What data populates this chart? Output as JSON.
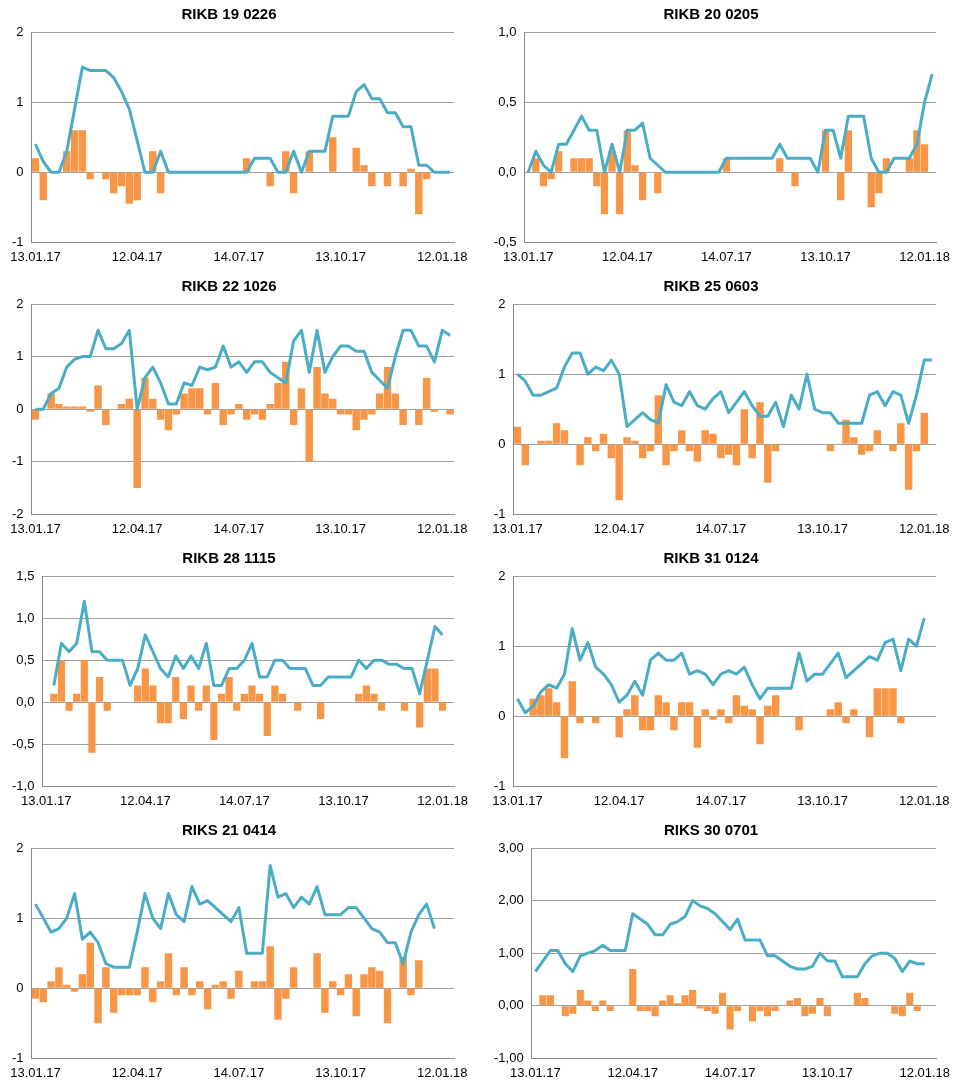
{
  "chart_data": [
    {
      "type": "bar",
      "title": "RIKB 19 0226",
      "grid": "y",
      "ylim": [
        -1,
        2
      ],
      "yticks": [
        -1,
        0,
        1,
        2
      ],
      "categories": [
        "13.01.17",
        null,
        null,
        null,
        null,
        null,
        null,
        null,
        null,
        null,
        null,
        null,
        null,
        "12.04.17",
        null,
        null,
        null,
        null,
        null,
        null,
        null,
        null,
        null,
        null,
        null,
        null,
        "14.07.17",
        null,
        null,
        null,
        null,
        null,
        null,
        null,
        null,
        null,
        null,
        null,
        null,
        "13.10.17",
        null,
        null,
        null,
        null,
        null,
        null,
        null,
        null,
        null,
        null,
        null,
        null,
        "12.01.18",
        null
      ],
      "series": [
        {
          "color": "#f79646",
          "values": [
            0.2,
            -0.4,
            null,
            null,
            0.3,
            0.6,
            0.6,
            -0.1,
            null,
            -0.1,
            -0.3,
            -0.2,
            -0.45,
            -0.4,
            null,
            0.3,
            -0.3,
            null,
            null,
            null,
            null,
            null,
            null,
            null,
            null,
            null,
            null,
            0.2,
            null,
            null,
            -0.2,
            null,
            0.3,
            -0.3,
            null,
            0.3,
            null,
            null,
            0.5,
            null,
            null,
            0.35,
            0.1,
            -0.2,
            null,
            -0.2,
            null,
            -0.2,
            0.05,
            -0.6,
            -0.1,
            null,
            null,
            null
          ]
        },
        {
          "type": "line",
          "color": "#4bacc6",
          "values": [
            0.4,
            0.15,
            0,
            0,
            0.3,
            0.9,
            1.5,
            1.45,
            1.45,
            1.45,
            1.35,
            1.15,
            0.9,
            0.45,
            0,
            0,
            0.3,
            0,
            0,
            0,
            0,
            0,
            0,
            0,
            0,
            0,
            0,
            0,
            0.2,
            0.2,
            0.2,
            0,
            0,
            0.3,
            0,
            0.3,
            0.3,
            0.3,
            0.8,
            0.8,
            0.8,
            1.15,
            1.25,
            1.05,
            1.05,
            0.85,
            0.85,
            0.65,
            0.65,
            0.1,
            0.1,
            0,
            0,
            0
          ]
        }
      ]
    },
    {
      "type": "bar",
      "title": "RIKB 20 0205",
      "grid": "y",
      "ylim": [
        -0.5,
        1
      ],
      "yticks": [
        {
          "value": -0.5,
          "label": "-0,5"
        },
        {
          "value": 0,
          "label": "0,0"
        },
        {
          "value": 0.5,
          "label": "0,5"
        },
        {
          "value": 1,
          "label": "1,0"
        }
      ],
      "categories": [
        "13.01.17",
        null,
        null,
        null,
        null,
        null,
        null,
        null,
        null,
        null,
        null,
        null,
        null,
        "12.04.17",
        null,
        null,
        null,
        null,
        null,
        null,
        null,
        null,
        null,
        null,
        null,
        null,
        "14.07.17",
        null,
        null,
        null,
        null,
        null,
        null,
        null,
        null,
        null,
        null,
        null,
        null,
        "13.10.17",
        null,
        null,
        null,
        null,
        null,
        null,
        null,
        null,
        null,
        null,
        null,
        null,
        "12.01.18",
        null
      ],
      "series": [
        {
          "color": "#f79646",
          "values": [
            null,
            0.1,
            -0.1,
            -0.05,
            0.15,
            null,
            0.1,
            0.1,
            0.1,
            -0.1,
            -0.3,
            0.15,
            -0.3,
            0.3,
            0.05,
            -0.2,
            null,
            -0.15,
            null,
            null,
            null,
            null,
            null,
            null,
            null,
            null,
            0.1,
            null,
            null,
            null,
            null,
            null,
            null,
            0.1,
            null,
            -0.1,
            null,
            null,
            null,
            0.3,
            0,
            -0.2,
            0.3,
            null,
            null,
            -0.25,
            -0.15,
            0.1,
            null,
            null,
            0.1,
            0.3,
            0.2,
            null
          ]
        },
        {
          "type": "line",
          "color": "#4bacc6",
          "values": [
            0,
            0.15,
            0.05,
            0,
            0.2,
            0.2,
            0.3,
            0.4,
            0.3,
            0.3,
            0,
            0.2,
            0,
            0.3,
            0.3,
            0.35,
            0.1,
            0.05,
            0,
            0,
            0,
            0,
            0,
            0,
            0,
            0,
            0.1,
            0.1,
            0.1,
            0.1,
            0.1,
            0.1,
            0.1,
            0.2,
            0.1,
            0.1,
            0.1,
            0.1,
            0,
            0.3,
            0.3,
            0.1,
            0.4,
            0.4,
            0.4,
            0.1,
            0,
            0,
            0.1,
            0.1,
            0.1,
            0.2,
            0.5,
            0.7
          ]
        }
      ]
    },
    {
      "type": "bar",
      "title": "RIKB 22 1026",
      "grid": "y",
      "ylim": [
        -2,
        2
      ],
      "yticks": [
        -2,
        -1,
        0,
        1,
        2
      ],
      "categories": [
        "13.01.17",
        null,
        null,
        null,
        null,
        null,
        null,
        null,
        null,
        null,
        null,
        null,
        null,
        "12.04.17",
        null,
        null,
        null,
        null,
        null,
        null,
        null,
        null,
        null,
        null,
        null,
        null,
        "14.07.17",
        null,
        null,
        null,
        null,
        null,
        null,
        null,
        null,
        null,
        null,
        null,
        null,
        "13.10.17",
        null,
        null,
        null,
        null,
        null,
        null,
        null,
        null,
        null,
        null,
        null,
        null,
        "12.01.18",
        null
      ],
      "series": [
        {
          "color": "#f79646",
          "values": [
            -0.2,
            null,
            0.3,
            0.1,
            0.05,
            0.05,
            0.05,
            -0.05,
            0.45,
            -0.3,
            null,
            0.1,
            0.2,
            -1.5,
            0.6,
            0.2,
            -0.2,
            -0.4,
            -0.1,
            0.3,
            0.4,
            0.4,
            -0.1,
            0.5,
            -0.3,
            -0.1,
            0.1,
            -0.2,
            -0.1,
            -0.2,
            0.1,
            0.5,
            0.9,
            -0.3,
            0.4,
            -1,
            0.8,
            0.3,
            0.2,
            -0.1,
            -0.1,
            -0.4,
            -0.2,
            -0.1,
            0.3,
            0.8,
            0.3,
            -0.3,
            null,
            -0.3,
            0.6,
            -0.05,
            null,
            -0.1
          ]
        },
        {
          "type": "line",
          "color": "#4bacc6",
          "values": [
            0,
            0,
            0.3,
            0.4,
            0.8,
            0.95,
            1,
            1,
            1.5,
            1.15,
            1.15,
            1.25,
            1.5,
            0,
            0.6,
            0.8,
            0.5,
            0.1,
            0.1,
            0.5,
            0.45,
            0.8,
            0.75,
            0.8,
            1.2,
            0.8,
            0.9,
            0.7,
            0.9,
            0.9,
            0.7,
            0.6,
            0.5,
            1.3,
            1.5,
            0.7,
            1.5,
            0.7,
            1,
            1.2,
            1.2,
            1.1,
            1.1,
            0.7,
            0.55,
            0.4,
            1,
            1.5,
            1.5,
            1.2,
            1.2,
            0.9,
            1.5,
            1.4
          ]
        }
      ]
    },
    {
      "type": "bar",
      "title": "RIKB 25 0603",
      "grid": "y",
      "ylim": [
        -1,
        2
      ],
      "yticks": [
        -1,
        0,
        1,
        2
      ],
      "categories": [
        "13.01.17",
        null,
        null,
        null,
        null,
        null,
        null,
        null,
        null,
        null,
        null,
        null,
        null,
        "12.04.17",
        null,
        null,
        null,
        null,
        null,
        null,
        null,
        null,
        null,
        null,
        null,
        null,
        "14.07.17",
        null,
        null,
        null,
        null,
        null,
        null,
        null,
        null,
        null,
        null,
        null,
        null,
        "13.10.17",
        null,
        null,
        null,
        null,
        null,
        null,
        null,
        null,
        null,
        null,
        null,
        null,
        "12.01.18",
        null
      ],
      "series": [
        {
          "color": "#f79646",
          "values": [
            0.25,
            -0.3,
            null,
            0.05,
            0.05,
            0.3,
            0.2,
            null,
            -0.3,
            0.1,
            -0.1,
            0.15,
            -0.2,
            -0.8,
            0.1,
            0.05,
            -0.2,
            -0.1,
            0.7,
            -0.3,
            -0.1,
            0.2,
            -0.1,
            -0.25,
            0.2,
            0.15,
            -0.2,
            -0.15,
            -0.3,
            0.5,
            -0.2,
            0.6,
            -0.55,
            -0.1,
            null,
            null,
            null,
            null,
            null,
            null,
            -0.1,
            null,
            0.35,
            0.1,
            -0.15,
            -0.1,
            0.2,
            null,
            -0.1,
            0.3,
            -0.65,
            -0.1,
            0.45,
            null
          ]
        },
        {
          "type": "line",
          "color": "#4bacc6",
          "values": [
            1,
            0.9,
            0.7,
            0.7,
            0.75,
            0.8,
            1.1,
            1.3,
            1.3,
            1,
            1.1,
            1.05,
            1.2,
            1,
            0.25,
            0.35,
            0.45,
            0.35,
            0.3,
            0.85,
            0.6,
            0.55,
            0.75,
            0.55,
            0.5,
            0.65,
            0.75,
            0.45,
            0.6,
            0.75,
            0.55,
            0.4,
            0.4,
            0.6,
            0.25,
            0.7,
            0.5,
            1,
            0.5,
            0.45,
            0.45,
            0.3,
            0.3,
            0.3,
            0.3,
            0.7,
            0.75,
            0.55,
            0.75,
            0.7,
            0.3,
            0.7,
            1.2,
            1.2
          ]
        }
      ]
    },
    {
      "type": "bar",
      "title": "RIKB 28 1115",
      "grid": "y",
      "ylim": [
        -1,
        1.5
      ],
      "yticks": [
        {
          "value": -1,
          "label": "-1,0"
        },
        {
          "value": -0.5,
          "label": "-0,5"
        },
        {
          "value": 0,
          "label": "0,0"
        },
        {
          "value": 0.5,
          "label": "0,5"
        },
        {
          "value": 1,
          "label": "1,0"
        },
        {
          "value": 1.5,
          "label": "1,5"
        }
      ],
      "categories": [
        "13.01.17",
        null,
        null,
        null,
        null,
        null,
        null,
        null,
        null,
        null,
        null,
        null,
        null,
        "12.04.17",
        null,
        null,
        null,
        null,
        null,
        null,
        null,
        null,
        null,
        null,
        null,
        null,
        "14.07.17",
        null,
        null,
        null,
        null,
        null,
        null,
        null,
        null,
        null,
        null,
        null,
        null,
        "13.10.17",
        null,
        null,
        null,
        null,
        null,
        null,
        null,
        null,
        null,
        null,
        null,
        null,
        "12.01.18",
        null
      ],
      "series": [
        {
          "color": "#f79646",
          "values": [
            null,
            0.1,
            0.5,
            -0.1,
            0.1,
            0.5,
            -0.6,
            0.3,
            -0.1,
            null,
            null,
            null,
            0.2,
            0.4,
            0.2,
            -0.25,
            -0.25,
            0.3,
            -0.2,
            0.2,
            -0.1,
            0.2,
            -0.45,
            0.1,
            0.3,
            -0.1,
            0.1,
            0.2,
            0.1,
            -0.4,
            0.2,
            0.1,
            null,
            -0.1,
            null,
            null,
            -0.2,
            null,
            null,
            null,
            null,
            0.1,
            0.2,
            0.1,
            -0.1,
            null,
            null,
            -0.1,
            null,
            -0.3,
            0.4,
            0.4,
            -0.1,
            null
          ]
        },
        {
          "type": "line",
          "color": "#4bacc6",
          "values": [
            null,
            0.2,
            0.7,
            0.6,
            0.7,
            1.2,
            0.6,
            0.6,
            0.5,
            0.5,
            0.5,
            0.2,
            0.4,
            0.8,
            0.6,
            0.4,
            0.3,
            0.55,
            0.4,
            0.55,
            0.4,
            0.7,
            0.2,
            0.2,
            0.4,
            0.4,
            0.5,
            0.7,
            0.3,
            0.3,
            0.5,
            0.5,
            0.4,
            0.4,
            0.4,
            0.2,
            0.2,
            0.3,
            0.3,
            0.3,
            0.3,
            0.5,
            0.4,
            0.5,
            0.5,
            0.45,
            0.45,
            0.4,
            0.4,
            0.1,
            0.5,
            0.9,
            0.8,
            null
          ]
        }
      ]
    },
    {
      "type": "bar",
      "title": "RIKB 31 0124",
      "grid": "y",
      "ylim": [
        -1,
        2
      ],
      "yticks": [
        -1,
        0,
        1,
        2
      ],
      "categories": [
        "13.01.17",
        null,
        null,
        null,
        null,
        null,
        null,
        null,
        null,
        null,
        null,
        null,
        null,
        "12.04.17",
        null,
        null,
        null,
        null,
        null,
        null,
        null,
        null,
        null,
        null,
        null,
        null,
        "14.07.17",
        null,
        null,
        null,
        null,
        null,
        null,
        null,
        null,
        null,
        null,
        null,
        null,
        "13.10.17",
        null,
        null,
        null,
        null,
        null,
        null,
        null,
        null,
        null,
        null,
        null,
        null,
        "12.01.18",
        null
      ],
      "series": [
        {
          "color": "#f79646",
          "values": [
            null,
            null,
            0.25,
            0.3,
            0.4,
            0.2,
            -0.6,
            0.5,
            -0.1,
            null,
            -0.1,
            null,
            null,
            -0.3,
            0.1,
            0.3,
            -0.2,
            -0.2,
            0.3,
            0.2,
            -0.2,
            0.2,
            0.2,
            -0.45,
            0.1,
            -0.05,
            0.1,
            -0.1,
            0.3,
            0.15,
            0.1,
            -0.4,
            0.15,
            0.3,
            null,
            null,
            -0.2,
            null,
            null,
            null,
            0.1,
            0.2,
            -0.1,
            0.1,
            null,
            -0.3,
            0.4,
            0.4,
            0.4,
            -0.1,
            null,
            null,
            null,
            null
          ]
        },
        {
          "type": "line",
          "color": "#4bacc6",
          "values": [
            0.25,
            0.05,
            0.15,
            0.35,
            0.45,
            0.4,
            0.6,
            1.25,
            0.8,
            1.05,
            0.7,
            0.6,
            0.45,
            0.2,
            0.3,
            0.5,
            0.3,
            0.8,
            0.9,
            0.8,
            0.8,
            0.9,
            0.6,
            0.65,
            0.6,
            0.45,
            0.6,
            0.65,
            0.6,
            0.7,
            0.45,
            0.25,
            0.4,
            0.4,
            0.4,
            0.4,
            0.9,
            0.5,
            0.6,
            0.6,
            0.75,
            0.9,
            0.55,
            0.65,
            0.75,
            0.85,
            0.8,
            1.05,
            1.1,
            0.65,
            1.1,
            1,
            1.4,
            null
          ]
        }
      ]
    },
    {
      "type": "bar",
      "title": "RIKS 21 0414",
      "grid": "y",
      "ylim": [
        -1,
        2
      ],
      "yticks": [
        -1,
        0,
        1,
        2
      ],
      "categories": [
        "13.01.17",
        null,
        null,
        null,
        null,
        null,
        null,
        null,
        null,
        null,
        null,
        null,
        null,
        "12.04.17",
        null,
        null,
        null,
        null,
        null,
        null,
        null,
        null,
        null,
        null,
        null,
        null,
        "14.07.17",
        null,
        null,
        null,
        null,
        null,
        null,
        null,
        null,
        null,
        null,
        null,
        null,
        "13.10.17",
        null,
        null,
        null,
        null,
        null,
        null,
        null,
        null,
        null,
        null,
        null,
        null,
        "12.01.18",
        null
      ],
      "series": [
        {
          "color": "#f79646",
          "values": [
            -0.15,
            -0.2,
            0.1,
            0.3,
            0.05,
            -0.05,
            0.2,
            0.65,
            -0.5,
            0.3,
            -0.35,
            -0.1,
            -0.1,
            -0.1,
            0.3,
            -0.2,
            0.1,
            0.5,
            -0.1,
            0.3,
            -0.1,
            0.1,
            -0.3,
            0.05,
            0.1,
            -0.15,
            0.25,
            null,
            0.1,
            0.1,
            0.6,
            -0.45,
            -0.15,
            0.3,
            null,
            null,
            0.5,
            -0.35,
            0.1,
            -0.1,
            0.2,
            -0.4,
            0.2,
            0.3,
            0.25,
            -0.5,
            null,
            0.45,
            -0.1,
            0.4,
            null,
            null,
            null,
            null
          ]
        },
        {
          "type": "line",
          "color": "#4bacc6",
          "values": [
            1.2,
            1,
            0.8,
            0.85,
            1,
            1.35,
            0.7,
            0.8,
            0.65,
            0.35,
            0.3,
            0.3,
            0.3,
            0.8,
            1.35,
            1,
            0.85,
            1.35,
            1.05,
            0.95,
            1.45,
            1.2,
            1.25,
            1.15,
            1.05,
            0.95,
            1.15,
            0.5,
            0.5,
            0.5,
            1.75,
            1.3,
            1.35,
            1.15,
            1.3,
            1.2,
            1.45,
            1.05,
            1.05,
            1.05,
            1.15,
            1.15,
            1,
            0.85,
            0.8,
            0.65,
            0.65,
            0.35,
            0.8,
            1.05,
            1.2,
            0.85,
            null,
            null
          ]
        }
      ]
    },
    {
      "type": "bar",
      "title": "RIKS 30 0701",
      "grid": "y",
      "ylim": [
        -1,
        3
      ],
      "yticks": [
        {
          "value": -1,
          "label": "-1,00"
        },
        {
          "value": 0,
          "label": "0,00"
        },
        {
          "value": 1,
          "label": "1,00"
        },
        {
          "value": 2,
          "label": "2,00"
        },
        {
          "value": 3,
          "label": "3,00"
        }
      ],
      "categories": [
        "13.01.17",
        null,
        null,
        null,
        null,
        null,
        null,
        null,
        null,
        null,
        null,
        null,
        null,
        "12.04.17",
        null,
        null,
        null,
        null,
        null,
        null,
        null,
        null,
        null,
        null,
        null,
        null,
        "14.07.17",
        null,
        null,
        null,
        null,
        null,
        null,
        null,
        null,
        null,
        null,
        null,
        null,
        "13.10.17",
        null,
        null,
        null,
        null,
        null,
        null,
        null,
        null,
        null,
        null,
        null,
        null,
        "12.01.18",
        null
      ],
      "series": [
        {
          "color": "#f79646",
          "values": [
            null,
            0.2,
            0.2,
            null,
            -0.2,
            -0.15,
            0.3,
            0.1,
            -0.1,
            0.1,
            -0.1,
            null,
            null,
            0.7,
            -0.1,
            -0.1,
            -0.2,
            0.1,
            0.2,
            0.05,
            0.2,
            0.3,
            -0.05,
            -0.1,
            -0.15,
            0.25,
            -0.45,
            -0.1,
            null,
            -0.3,
            -0.1,
            -0.2,
            -0.1,
            null,
            0.1,
            0.15,
            -0.2,
            -0.15,
            0.15,
            -0.2,
            null,
            null,
            null,
            0.25,
            0.15,
            null,
            null,
            null,
            -0.15,
            -0.2,
            0.25,
            -0.1,
            null,
            null
          ]
        },
        {
          "type": "line",
          "color": "#4bacc6",
          "values": [
            0.65,
            0.85,
            1.05,
            1.05,
            0.8,
            0.65,
            0.95,
            1,
            1.05,
            1.15,
            1.05,
            1.05,
            1.05,
            1.75,
            1.65,
            1.55,
            1.35,
            1.35,
            1.55,
            1.6,
            1.7,
            2,
            1.9,
            1.85,
            1.75,
            1.6,
            1.45,
            1.65,
            1.25,
            1.25,
            1.25,
            0.95,
            0.95,
            0.85,
            0.75,
            0.7,
            0.7,
            0.75,
            1,
            0.85,
            0.85,
            0.55,
            0.55,
            0.55,
            0.8,
            0.95,
            1,
            1,
            0.9,
            0.65,
            0.85,
            0.8,
            0.8,
            null
          ]
        }
      ]
    }
  ]
}
